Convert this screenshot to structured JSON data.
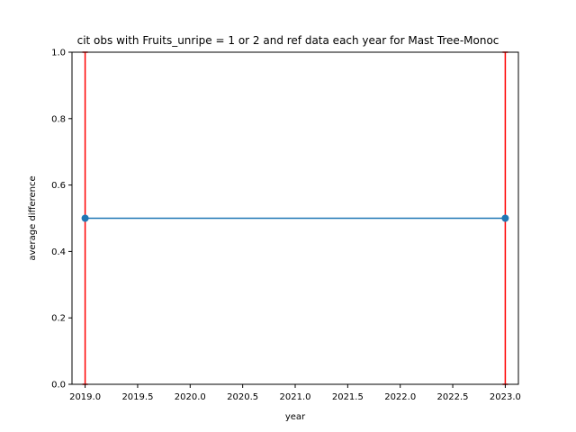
{
  "chart_data": {
    "type": "line",
    "title": "cit obs with Fruits_unripe = 1 or 2 and ref data each year for Mast Tree-Monoc",
    "xlabel": "year",
    "ylabel": "average difference",
    "xlim": [
      2018.875,
      2023.125
    ],
    "ylim": [
      0.0,
      1.0
    ],
    "xticks": [
      2019.0,
      2019.5,
      2020.0,
      2020.5,
      2021.0,
      2021.5,
      2022.0,
      2022.5,
      2023.0
    ],
    "xtick_labels": [
      "2019.0",
      "2019.5",
      "2020.0",
      "2020.5",
      "2021.0",
      "2021.5",
      "2022.0",
      "2022.5",
      "2023.0"
    ],
    "yticks": [
      0.0,
      0.2,
      0.4,
      0.6,
      0.8,
      1.0
    ],
    "ytick_labels": [
      "0.0",
      "0.2",
      "0.4",
      "0.6",
      "0.8",
      "1.0"
    ],
    "grid": false,
    "series": [
      {
        "x": [
          2019,
          2023
        ],
        "y": [
          0.5,
          0.5
        ],
        "color": "#1f77b4",
        "marker": "circle",
        "error_bars": {
          "lower": [
            0.0,
            0.0
          ],
          "upper": [
            1.0,
            1.0
          ],
          "color": "#ff0000"
        }
      }
    ]
  }
}
